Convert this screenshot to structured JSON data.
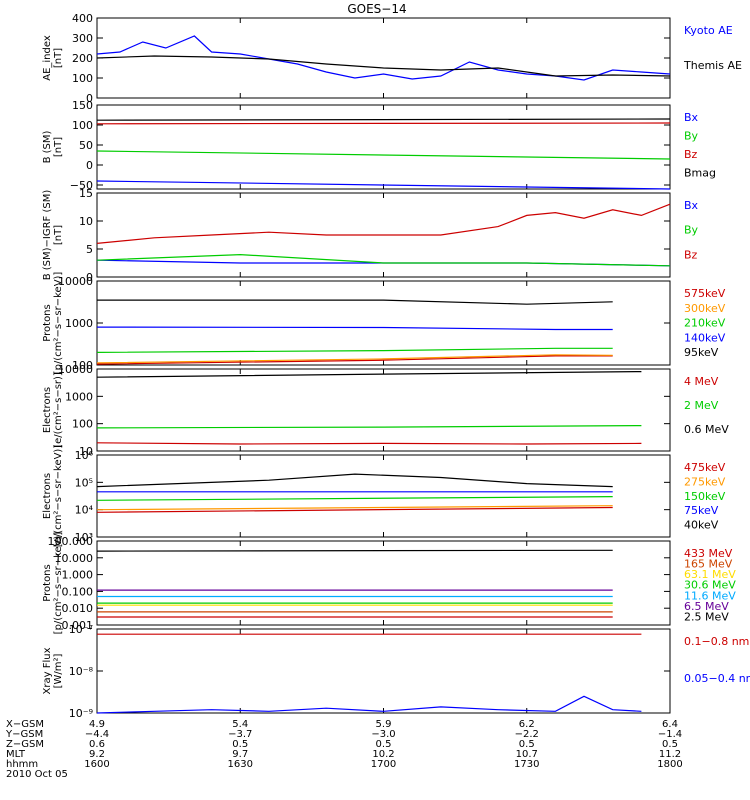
{
  "title": "GOES−14",
  "chart_data": [
    {
      "id": "ae",
      "type": "line",
      "ylabel": "AE_index\n[nT]",
      "scale": "linear",
      "ylim": [
        0,
        400
      ],
      "yticks": [
        "0",
        "100",
        "200",
        "300",
        "400"
      ],
      "ytick_values": [
        0,
        100,
        200,
        300,
        400
      ],
      "series": [
        {
          "name": "Kyoto AE",
          "color": "#0000ff",
          "x": [
            0,
            0.04,
            0.08,
            0.12,
            0.17,
            0.2,
            0.25,
            0.3,
            0.35,
            0.4,
            0.45,
            0.5,
            0.55,
            0.6,
            0.65,
            0.7,
            0.75,
            0.8,
            0.85,
            0.9,
            0.95,
            1
          ],
          "y": [
            220,
            230,
            280,
            250,
            310,
            230,
            220,
            195,
            170,
            130,
            100,
            120,
            95,
            110,
            180,
            140,
            120,
            110,
            90,
            140,
            130,
            120
          ]
        },
        {
          "name": "Themis AE",
          "color": "#000000",
          "x": [
            0,
            0.1,
            0.2,
            0.3,
            0.4,
            0.5,
            0.6,
            0.7,
            0.8,
            0.9,
            1
          ],
          "y": [
            200,
            210,
            205,
            195,
            170,
            150,
            140,
            150,
            110,
            115,
            110
          ]
        }
      ]
    },
    {
      "id": "bsm",
      "type": "line",
      "ylabel": "B (SM)\n[nT]",
      "scale": "linear",
      "ylim": [
        -60,
        150
      ],
      "yticks": [
        "−50",
        "0",
        "50",
        "100",
        "150"
      ],
      "ytick_values": [
        -50,
        0,
        50,
        100,
        150
      ],
      "series": [
        {
          "name": "Bx",
          "color": "#0000ff",
          "x": [
            0,
            1
          ],
          "y": [
            -40,
            -60
          ]
        },
        {
          "name": "By",
          "color": "#00cc00",
          "x": [
            0,
            1
          ],
          "y": [
            35,
            15
          ]
        },
        {
          "name": "Bz",
          "color": "#cc0000",
          "x": [
            0,
            1
          ],
          "y": [
            103,
            105
          ]
        },
        {
          "name": "Bmag",
          "color": "#000000",
          "x": [
            0,
            1
          ],
          "y": [
            112,
            115
          ]
        }
      ]
    },
    {
      "id": "bigrf",
      "type": "line",
      "ylabel": "B (SM)−IGRF (SM)\n[nT]",
      "scale": "linear",
      "ylim": [
        0,
        15
      ],
      "yticks": [
        "0",
        "5",
        "10",
        "15"
      ],
      "ytick_values": [
        0,
        5,
        10,
        15
      ],
      "series": [
        {
          "name": "Bx",
          "color": "#0000ff",
          "x": [
            0,
            0.25,
            0.5,
            0.75,
            1
          ],
          "y": [
            3,
            2.5,
            2.5,
            2.5,
            2
          ]
        },
        {
          "name": "By",
          "color": "#00cc00",
          "x": [
            0,
            0.25,
            0.5,
            0.75,
            1
          ],
          "y": [
            3,
            4,
            2.5,
            2.5,
            2
          ]
        },
        {
          "name": "Bz",
          "color": "#cc0000",
          "x": [
            0,
            0.1,
            0.2,
            0.3,
            0.4,
            0.5,
            0.6,
            0.7,
            0.75,
            0.8,
            0.85,
            0.9,
            0.95,
            1
          ],
          "y": [
            6,
            7,
            7.5,
            8,
            7.5,
            7.5,
            7.5,
            9,
            11,
            11.5,
            10.5,
            12,
            11,
            13
          ]
        }
      ]
    },
    {
      "id": "protons",
      "type": "line",
      "ylabel": "Protons\n[p/(cm²−s−sr−keV)]",
      "scale": "log",
      "ylim": [
        100,
        10000
      ],
      "yticks": [
        "100",
        "1000",
        "10000"
      ],
      "ytick_values": [
        100,
        1000,
        10000
      ],
      "series": [
        {
          "name": "575keV",
          "color": "#cc0000",
          "x": [
            0,
            0.5,
            0.8,
            0.9
          ],
          "y": [
            105,
            130,
            165,
            165
          ]
        },
        {
          "name": "300keV",
          "color": "#ff9900",
          "x": [
            0,
            0.5,
            0.8,
            0.9
          ],
          "y": [
            112,
            140,
            175,
            170
          ]
        },
        {
          "name": "210keV",
          "color": "#00cc00",
          "x": [
            0,
            0.5,
            0.8,
            0.9
          ],
          "y": [
            200,
            220,
            250,
            250
          ]
        },
        {
          "name": "140keV",
          "color": "#0000ff",
          "x": [
            0,
            0.5,
            0.8,
            0.9
          ],
          "y": [
            800,
            780,
            700,
            700
          ]
        },
        {
          "name": "95keV",
          "color": "#000000",
          "x": [
            0,
            0.5,
            0.75,
            0.9
          ],
          "y": [
            3500,
            3500,
            2800,
            3200
          ]
        }
      ]
    },
    {
      "id": "electrons_mev",
      "type": "line",
      "ylabel": "Electrons\n[e/(cm²−s−sr)]",
      "scale": "log",
      "ylim": [
        10,
        10000
      ],
      "yticks": [
        "10",
        "100",
        "1000",
        "10000"
      ],
      "ytick_values": [
        10,
        100,
        1000,
        10000
      ],
      "series": [
        {
          "name": "4 MeV",
          "color": "#cc0000",
          "x": [
            0,
            0.25,
            0.5,
            0.75,
            0.95
          ],
          "y": [
            20,
            18,
            19,
            18,
            19
          ]
        },
        {
          "name": "2 MeV",
          "color": "#00cc00",
          "x": [
            0,
            0.5,
            0.95
          ],
          "y": [
            70,
            75,
            85
          ]
        },
        {
          "name": "0.6 MeV",
          "color": "#000000",
          "x": [
            0,
            0.5,
            0.95
          ],
          "y": [
            5000,
            6500,
            8000
          ]
        }
      ]
    },
    {
      "id": "electrons_kev",
      "type": "line",
      "ylabel": "Electrons\n[e/(cm²−s−sr−keV)]",
      "scale": "log",
      "ylim": [
        1000,
        1000000
      ],
      "yticks": [
        "10³",
        "10⁴",
        "10⁵",
        "10⁶"
      ],
      "ytick_values": [
        1000,
        10000,
        100000,
        1000000
      ],
      "series": [
        {
          "name": "475keV",
          "color": "#cc0000",
          "x": [
            0,
            0.9
          ],
          "y": [
            8000,
            12000
          ]
        },
        {
          "name": "275keV",
          "color": "#ff9900",
          "x": [
            0,
            0.9
          ],
          "y": [
            10000,
            14000
          ]
        },
        {
          "name": "150keV",
          "color": "#00cc00",
          "x": [
            0,
            0.9
          ],
          "y": [
            22000,
            30000
          ]
        },
        {
          "name": "75keV",
          "color": "#0000ff",
          "x": [
            0,
            0.9
          ],
          "y": [
            45000,
            45000
          ]
        },
        {
          "name": "40keV",
          "color": "#000000",
          "x": [
            0,
            0.3,
            0.45,
            0.6,
            0.75,
            0.9
          ],
          "y": [
            70000,
            120000,
            200000,
            150000,
            90000,
            70000
          ]
        }
      ]
    },
    {
      "id": "protons_mev",
      "type": "line",
      "ylabel": "Protons\n[p/(cm²−s−sr−keV)]",
      "scale": "log",
      "ylim": [
        0.001,
        100
      ],
      "yticks": [
        "0.001",
        "0.010",
        "0.100",
        "1.000",
        "10.000",
        "100.000"
      ],
      "ytick_values": [
        0.001,
        0.01,
        0.1,
        1,
        10,
        100
      ],
      "series": [
        {
          "name": "433 MeV",
          "color": "#cc0000",
          "x": [
            0,
            0.9
          ],
          "y": [
            0.003,
            0.003
          ]
        },
        {
          "name": "165 MeV",
          "color": "#cc4400",
          "x": [
            0,
            0.9
          ],
          "y": [
            0.006,
            0.006
          ]
        },
        {
          "name": "63.1 MeV",
          "color": "#ffdd00",
          "x": [
            0,
            0.9
          ],
          "y": [
            0.015,
            0.015
          ]
        },
        {
          "name": "30.6 MeV",
          "color": "#00cc00",
          "x": [
            0,
            0.9
          ],
          "y": [
            0.02,
            0.02
          ]
        },
        {
          "name": "11.6 MeV",
          "color": "#00aaff",
          "x": [
            0,
            0.9
          ],
          "y": [
            0.05,
            0.05
          ]
        },
        {
          "name": "6.5 MeV",
          "color": "#660099",
          "x": [
            0,
            0.9
          ],
          "y": [
            0.12,
            0.12
          ]
        },
        {
          "name": "2.5 MeV",
          "color": "#000000",
          "x": [
            0,
            0.9
          ],
          "y": [
            25,
            28
          ]
        }
      ]
    },
    {
      "id": "xray",
      "type": "line",
      "ylabel": "Xray Flux\n[W/m²]",
      "scale": "log",
      "ylim": [
        1e-09,
        1e-07
      ],
      "yticks": [
        "10⁻⁹",
        "10⁻⁸",
        "10⁻⁷"
      ],
      "ytick_values": [
        1e-09,
        1e-08,
        1e-07
      ],
      "series": [
        {
          "name": "0.1−0.8 nm",
          "color": "#cc0000",
          "x": [
            0,
            0.95
          ],
          "y": [
            7.5e-08,
            7.5e-08
          ]
        },
        {
          "name": "0.05−0.4 nm",
          "color": "#0000ff",
          "x": [
            0,
            0.1,
            0.2,
            0.3,
            0.4,
            0.5,
            0.6,
            0.7,
            0.8,
            0.85,
            0.9,
            0.95
          ],
          "y": [
            1e-09,
            1.1e-09,
            1.2e-09,
            1.1e-09,
            1.3e-09,
            1.1e-09,
            1.4e-09,
            1.2e-09,
            1.1e-09,
            2.5e-09,
            1.2e-09,
            1.1e-09
          ]
        }
      ]
    }
  ],
  "xaxis": {
    "rows": [
      {
        "label": "X−GSM",
        "values": [
          "4.9",
          "5.4",
          "5.9",
          "6.2",
          "6.4"
        ]
      },
      {
        "label": "Y−GSM",
        "values": [
          "−4.4",
          "−3.7",
          "−3.0",
          "−2.2",
          "−1.4"
        ]
      },
      {
        "label": "Z−GSM",
        "values": [
          "0.6",
          "0.5",
          "0.5",
          "0.5",
          "0.5"
        ]
      },
      {
        "label": "MLT",
        "values": [
          "9.2",
          "9.7",
          "10.2",
          "10.7",
          "11.2"
        ]
      },
      {
        "label": "hhmm",
        "values": [
          "1600",
          "1630",
          "1700",
          "1730",
          "1800"
        ]
      }
    ],
    "date": "2010 Oct 05"
  }
}
